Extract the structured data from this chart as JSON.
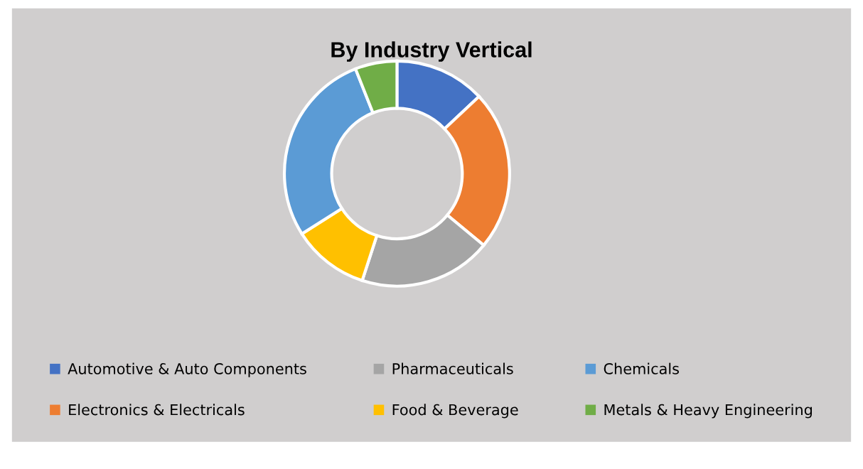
{
  "chart_data": {
    "type": "donut",
    "title": "By Industry Vertical",
    "categories": [
      "Automotive & Auto Components",
      "Electronics & Electricals",
      "Pharmaceuticals",
      "Food & Beverage",
      "Chemicals",
      "Metals & Heavy Engineering"
    ],
    "values": [
      13,
      23,
      19,
      11,
      28,
      6
    ],
    "colors": [
      "#4472c4",
      "#ed7d31",
      "#a5a5a5",
      "#ffc000",
      "#5b9bd5",
      "#70ad47"
    ],
    "legend": "bottom"
  }
}
